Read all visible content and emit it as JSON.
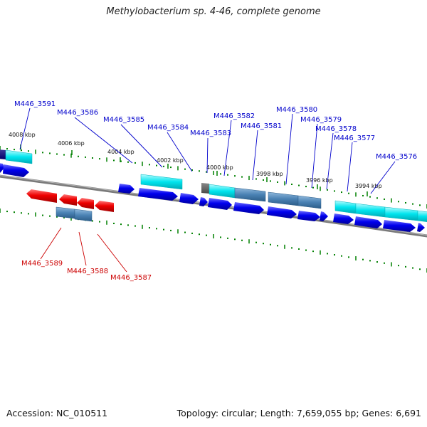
{
  "title": "Methylobacterium sp. 4-46, complete genome",
  "footer": {
    "accession": "Accession: NC_010511",
    "topology": "Topology: circular; Length: 7,659,055 bp; Genes: 6,691"
  },
  "colors": {
    "backbone": "#7f7f7f",
    "forward_cds": "#0000ee",
    "reverse_cds": "#ee0000",
    "forward_feature": "#00e5ee",
    "steel_feature": "#4a82b4",
    "tick": "#008000",
    "label_forward": "#0000cc",
    "label_reverse": "#cc0000"
  },
  "ticks": [
    {
      "label": "4008 kbp"
    },
    {
      "label": "4006 kbp"
    },
    {
      "label": "4004 kbp"
    },
    {
      "label": "4002 kbp"
    },
    {
      "label": "4000 kbp"
    },
    {
      "label": "3998 kbp"
    },
    {
      "label": "3996 kbp"
    },
    {
      "label": "3994 kbp"
    }
  ],
  "gene_labels": [
    {
      "text": "M446_3591",
      "strand": "forward"
    },
    {
      "text": "M446_3586",
      "strand": "forward"
    },
    {
      "text": "M446_3585",
      "strand": "forward"
    },
    {
      "text": "M446_3584",
      "strand": "forward"
    },
    {
      "text": "M446_3583",
      "strand": "forward"
    },
    {
      "text": "M446_3582",
      "strand": "forward"
    },
    {
      "text": "M446_3581",
      "strand": "forward"
    },
    {
      "text": "M446_3580",
      "strand": "forward"
    },
    {
      "text": "M446_3579",
      "strand": "forward"
    },
    {
      "text": "M446_3578",
      "strand": "forward"
    },
    {
      "text": "M446_3577",
      "strand": "forward"
    },
    {
      "text": "M446_3576",
      "strand": "forward"
    },
    {
      "text": "M446_3589",
      "strand": "reverse"
    },
    {
      "text": "M446_3588",
      "strand": "reverse"
    },
    {
      "text": "M446_3587",
      "strand": "reverse"
    }
  ]
}
